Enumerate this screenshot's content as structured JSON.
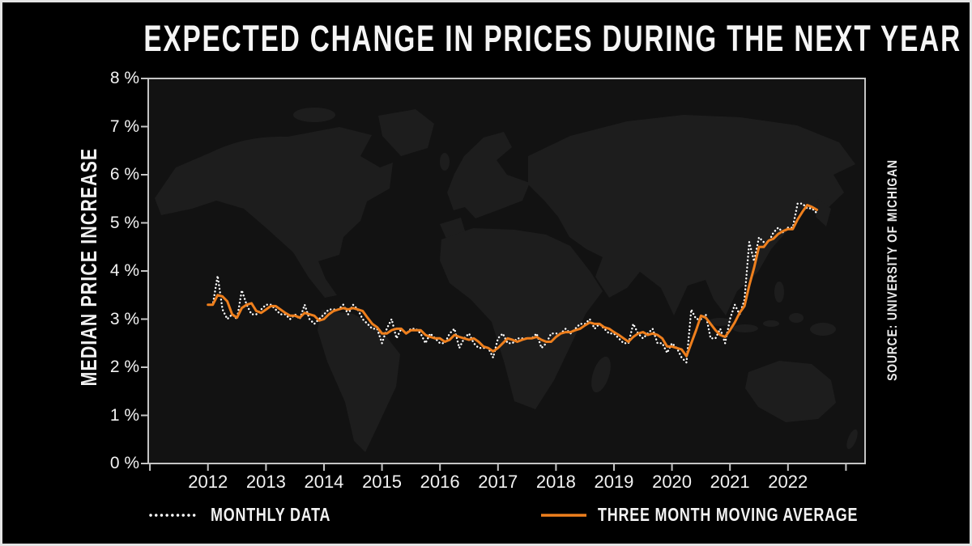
{
  "title": "EXPECTED CHANGE IN PRICES DURING THE NEXT YEAR",
  "y_axis_title": "MEDIAN PRICE INCREASE",
  "source_note": "SOURCE: UNIVERSITY OF MICHIGAN",
  "legend": {
    "monthly_label": "MONTHLY DATA",
    "moving_average_label": "THREE MONTH MOVING AVERAGE"
  },
  "colors": {
    "page_background": "#000000",
    "frame_border": "#e4e4e4",
    "plot_background": "#121212",
    "map_fill": "#1d1d1d",
    "axis_frame": "#c4c4c4",
    "tick_label": "#f2f2f2",
    "monthly_series": "#ffffff",
    "moving_average_series": "#ee7f1d"
  },
  "chart_data": {
    "type": "line",
    "title": "EXPECTED CHANGE IN PRICES DURING THE NEXT YEAR",
    "ylabel": "MEDIAN PRICE INCREASE",
    "source": "SOURCE: UNIVERSITY OF MICHIGAN",
    "grid": false,
    "legend_position": "bottom",
    "background_image": "world-map-silhouette",
    "x_start": "2012-01",
    "x_end": "2022-07",
    "frequency": "monthly",
    "points": 127,
    "x_axis": {
      "min_year": 2010.97,
      "max_year": 2023.33,
      "tick_years_start": 2011,
      "tick_years_end": 2023,
      "labeled_ticks": [
        2012,
        2013,
        2014,
        2015,
        2016,
        2017,
        2018,
        2019,
        2020,
        2021,
        2022
      ]
    },
    "y_axis": {
      "min": 0,
      "max": 8,
      "tick_step": 1,
      "unit": "percent",
      "tick_labels": [
        "0 %",
        "1 %",
        "2 %",
        "3 %",
        "4 %",
        "5 %",
        "6 %",
        "7 %",
        "8 %"
      ]
    },
    "series": [
      {
        "name": "MONTHLY DATA",
        "style": "dotted",
        "color": "#ffffff",
        "values": [
          3.3,
          3.3,
          3.9,
          3.2,
          3.0,
          3.1,
          3.0,
          3.6,
          3.3,
          3.1,
          3.1,
          3.2,
          3.3,
          3.3,
          3.2,
          3.1,
          3.1,
          3.0,
          3.1,
          3.0,
          3.3,
          3.0,
          2.9,
          3.0,
          3.1,
          3.2,
          3.2,
          3.2,
          3.3,
          3.1,
          3.3,
          3.2,
          3.0,
          2.9,
          2.8,
          2.8,
          2.5,
          2.8,
          3.0,
          2.6,
          2.8,
          2.7,
          2.8,
          2.8,
          2.7,
          2.5,
          2.7,
          2.6,
          2.5,
          2.5,
          2.7,
          2.8,
          2.4,
          2.6,
          2.7,
          2.5,
          2.4,
          2.4,
          2.4,
          2.2,
          2.6,
          2.7,
          2.5,
          2.5,
          2.6,
          2.6,
          2.6,
          2.6,
          2.7,
          2.4,
          2.5,
          2.7,
          2.7,
          2.7,
          2.8,
          2.7,
          2.8,
          2.9,
          2.9,
          3.0,
          2.8,
          2.9,
          2.8,
          2.7,
          2.7,
          2.6,
          2.5,
          2.5,
          2.9,
          2.7,
          2.6,
          2.7,
          2.8,
          2.5,
          2.5,
          2.3,
          2.5,
          2.4,
          2.2,
          2.1,
          3.2,
          3.0,
          3.0,
          3.1,
          2.6,
          2.6,
          2.8,
          2.5,
          3.0,
          3.3,
          3.1,
          3.4,
          4.6,
          4.2,
          4.7,
          4.6,
          4.6,
          4.8,
          4.9,
          4.8,
          4.9,
          4.9,
          5.4,
          5.4,
          5.3,
          5.3,
          5.2
        ]
      },
      {
        "name": "THREE MONTH MOVING AVERAGE",
        "style": "solid",
        "color": "#ee7f1d",
        "values": [
          3.3,
          3.3,
          3.5,
          3.47,
          3.37,
          3.1,
          3.03,
          3.23,
          3.3,
          3.33,
          3.17,
          3.13,
          3.2,
          3.27,
          3.27,
          3.2,
          3.13,
          3.07,
          3.07,
          3.03,
          3.13,
          3.1,
          3.07,
          2.97,
          3.0,
          3.1,
          3.17,
          3.2,
          3.23,
          3.2,
          3.23,
          3.2,
          3.17,
          3.03,
          2.9,
          2.83,
          2.7,
          2.7,
          2.77,
          2.8,
          2.8,
          2.7,
          2.77,
          2.77,
          2.77,
          2.67,
          2.63,
          2.6,
          2.6,
          2.53,
          2.57,
          2.67,
          2.63,
          2.6,
          2.57,
          2.6,
          2.53,
          2.43,
          2.4,
          2.33,
          2.4,
          2.5,
          2.6,
          2.57,
          2.53,
          2.57,
          2.6,
          2.6,
          2.63,
          2.57,
          2.53,
          2.53,
          2.63,
          2.7,
          2.73,
          2.73,
          2.77,
          2.8,
          2.87,
          2.93,
          2.9,
          2.9,
          2.83,
          2.8,
          2.73,
          2.67,
          2.6,
          2.53,
          2.63,
          2.7,
          2.73,
          2.67,
          2.7,
          2.67,
          2.6,
          2.43,
          2.43,
          2.4,
          2.37,
          2.23,
          2.5,
          2.77,
          3.07,
          3.03,
          2.9,
          2.77,
          2.67,
          2.63,
          2.77,
          2.93,
          3.13,
          3.27,
          3.7,
          4.07,
          4.5,
          4.5,
          4.63,
          4.67,
          4.77,
          4.83,
          4.87,
          4.87,
          5.07,
          5.23,
          5.37,
          5.33,
          5.27
        ]
      }
    ]
  }
}
